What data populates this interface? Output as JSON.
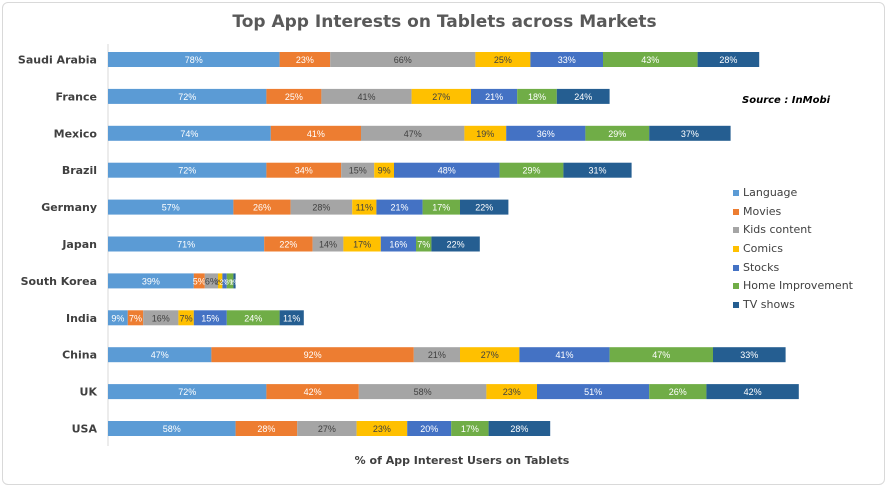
{
  "chart_data": {
    "type": "bar",
    "orientation": "horizontal",
    "stacked": true,
    "title": "Top App Interests on Tablets across Markets",
    "xlabel": "% of App Interest Users on Tablets",
    "ylabel": "",
    "source": "Source : InMobi",
    "legend_position": "right",
    "grid": false,
    "categories": [
      "Saudi Arabia",
      "France",
      "Mexico",
      "Brazil",
      "Germany",
      "Japan",
      "South Korea",
      "India",
      "China",
      "UK",
      "USA"
    ],
    "series": [
      {
        "name": "Language",
        "color": "#5b9bd5",
        "values": [
          78,
          72,
          74,
          72,
          57,
          71,
          39,
          9,
          47,
          72,
          58
        ],
        "labels": [
          "78%",
          "72%",
          "74%",
          "72%",
          "57%",
          "71%",
          "39%",
          "9%",
          "47%",
          "72%",
          "58%"
        ]
      },
      {
        "name": "Movies",
        "color": "#ed7d31",
        "values": [
          23,
          25,
          41,
          34,
          26,
          22,
          5,
          7,
          92,
          42,
          28
        ],
        "labels": [
          "23%",
          "25%",
          "41%",
          "34%",
          "26%",
          "22%",
          "5%",
          "7%",
          "92%",
          "42%",
          "28%"
        ]
      },
      {
        "name": "Kids content",
        "color": "#a5a5a5",
        "values": [
          66,
          41,
          47,
          15,
          28,
          14,
          6,
          16,
          21,
          58,
          27
        ],
        "labels": [
          "66%",
          "41%",
          "47%",
          "15%",
          "28%",
          "14%",
          "6%",
          "16%",
          "21%",
          "58%",
          "27%"
        ]
      },
      {
        "name": "Comics",
        "color": "#ffc000",
        "values": [
          25,
          27,
          19,
          9,
          11,
          17,
          2,
          7,
          27,
          23,
          23
        ],
        "labels": [
          "25%",
          "27%",
          "19%",
          "9%",
          "11%",
          "17%",
          "2%",
          "7%",
          "27%",
          "23%",
          "23%"
        ]
      },
      {
        "name": "Stocks",
        "color": "#4472c4",
        "values": [
          33,
          21,
          36,
          48,
          21,
          16,
          2,
          15,
          41,
          51,
          20
        ],
        "labels": [
          "33%",
          "21%",
          "36%",
          "48%",
          "21%",
          "16%",
          "2%",
          "15%",
          "41%",
          "51%",
          "20%"
        ]
      },
      {
        "name": "Home Improvement",
        "color": "#70ad47",
        "values": [
          43,
          18,
          29,
          29,
          17,
          7,
          3,
          24,
          47,
          26,
          17
        ],
        "labels": [
          "43%",
          "18%",
          "29%",
          "29%",
          "17%",
          "7%",
          "3%",
          "24%",
          "47%",
          "26%",
          "17%"
        ]
      },
      {
        "name": "TV shows",
        "color": "#255e91",
        "values": [
          28,
          24,
          37,
          31,
          22,
          22,
          1,
          11,
          33,
          42,
          28
        ],
        "labels": [
          "28%",
          "24%",
          "37%",
          "31%",
          "22%",
          "22%",
          "1%",
          "11%",
          "33%",
          "42%",
          "28%"
        ]
      }
    ]
  }
}
